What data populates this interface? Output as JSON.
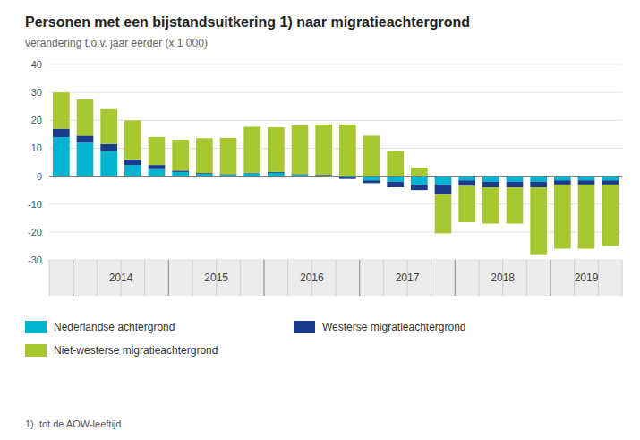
{
  "chart_data": {
    "type": "bar",
    "stacked": true,
    "grid": true,
    "legend": "bottom",
    "title": "Personen met een bijstandsuitkering 1) naar migratieachtergrond",
    "subtitle": "verandering t.o.v. jaar eerder (x 1 000)",
    "annotations": [
      "1)  tot de AOW-leeftijd"
    ],
    "categories": [
      null,
      "2014",
      null,
      null,
      null,
      "2015",
      null,
      null,
      null,
      "2016",
      null,
      null,
      null,
      "2017",
      null,
      null,
      null,
      "2018",
      null,
      null,
      null,
      "2019",
      null,
      null
    ],
    "series": [
      {
        "name": "Nederlandse achtergrond",
        "color": "#00b4d0",
        "values": [
          14.0,
          12.0,
          9.0,
          4.0,
          2.5,
          1.5,
          0.8,
          0.5,
          1.0,
          1.2,
          0.5,
          0.3,
          -0.5,
          -1.5,
          -2.0,
          -3.0,
          -3.0,
          -1.5,
          -2.0,
          -2.0,
          -2.0,
          -1.5,
          -1.5,
          -1.5
        ]
      },
      {
        "name": "Westerse migratieachtergrond",
        "color": "#1a3a8c",
        "values": [
          3.0,
          2.5,
          2.5,
          2.0,
          1.5,
          0.5,
          0.3,
          0.2,
          0.2,
          0.3,
          0.2,
          0.2,
          -0.5,
          -1.0,
          -2.0,
          -2.0,
          -3.5,
          -2.0,
          -2.0,
          -2.0,
          -2.0,
          -1.5,
          -1.5,
          -1.5
        ]
      },
      {
        "name": "Niet-westerse migratieachtergrond",
        "color": "#a8c832",
        "values": [
          13.0,
          13.0,
          12.5,
          14.0,
          10.0,
          11.0,
          12.5,
          13.0,
          16.5,
          16.0,
          17.5,
          18.0,
          18.5,
          14.5,
          9.0,
          3.0,
          -14.0,
          -13.0,
          -13.0,
          -13.0,
          -24.0,
          -23.0,
          -23.0,
          -22.0
        ]
      }
    ],
    "ylim": [
      -30,
      40
    ],
    "yticks": [
      -30,
      -20,
      -10,
      0,
      10,
      20,
      30,
      40
    ]
  }
}
